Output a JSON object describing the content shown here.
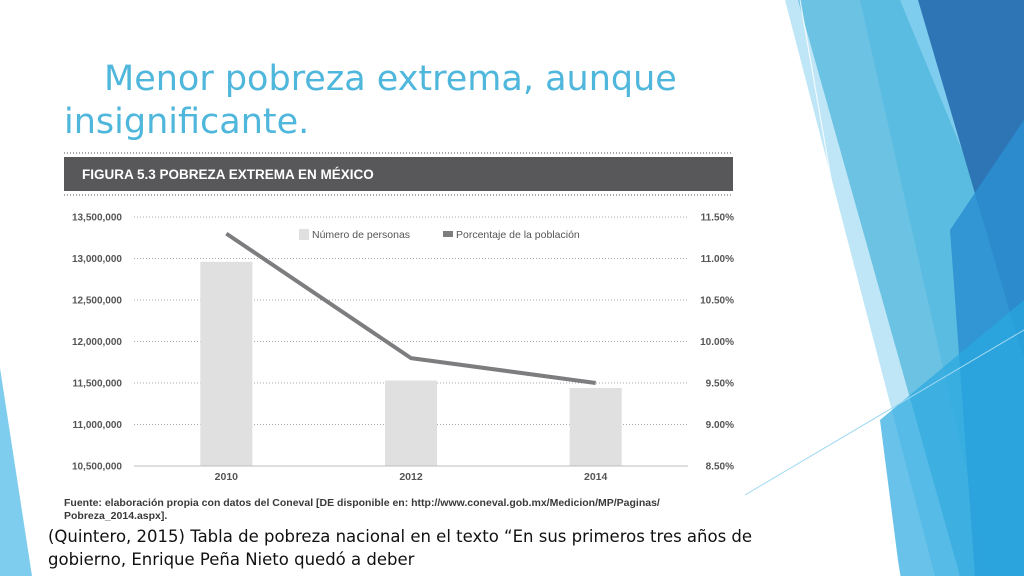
{
  "slide": {
    "title_line1": "Menor pobreza extrema, aunque",
    "title_line2": "insignificante.",
    "caption": "(Quintero, 2015) Tabla de pobreza nacional en el texto “En sus primeros tres años de gobierno, Enrique Peña Nieto quedó a deber"
  },
  "colors": {
    "title": "#4fb6dc",
    "header_band": "#58585a",
    "bar": "#e0e0e1",
    "line": "#7d7d80",
    "accent_dark": "#2e75b6",
    "accent_light": "#9fd8f2"
  },
  "chart_data": {
    "type": "bar",
    "title": "FIGURA 5.3 POBREZA EXTREMA EN MÉXICO",
    "categories": [
      "2010",
      "2012",
      "2014"
    ],
    "series": [
      {
        "name": "Número de personas",
        "type": "bar",
        "axis": "left",
        "values": [
          12960000,
          11530000,
          11440000
        ]
      },
      {
        "name": "Porcentaje de la población",
        "type": "line",
        "axis": "right",
        "values": [
          11.3,
          9.8,
          9.5
        ]
      }
    ],
    "y_left": {
      "ticks": [
        13500000,
        13000000,
        12500000,
        12000000,
        11500000,
        11000000,
        10500000
      ],
      "tick_labels": [
        "13,500,000",
        "13,000,000",
        "12,500,000",
        "12,000,000",
        "11,500,000",
        "11,000,000",
        "10,500,000"
      ],
      "ylim": [
        10500000,
        13500000
      ]
    },
    "y_right": {
      "ticks": [
        11.5,
        11.0,
        10.5,
        10.0,
        9.5,
        9.0,
        8.5
      ],
      "tick_labels": [
        "11.50%",
        "11.00%",
        "10.50%",
        "10.00%",
        "9.50%",
        "9.00%",
        "8.50%"
      ],
      "ylim": [
        8.5,
        11.5
      ]
    },
    "grid": true,
    "legend": "top",
    "source_line1": "Fuente: elaboración propia con datos del Coneval [DE disponible en: http://www.coneval.gob.mx/Medicion/MP/Paginas/",
    "source_line2": "Pobreza_2014.aspx]."
  }
}
